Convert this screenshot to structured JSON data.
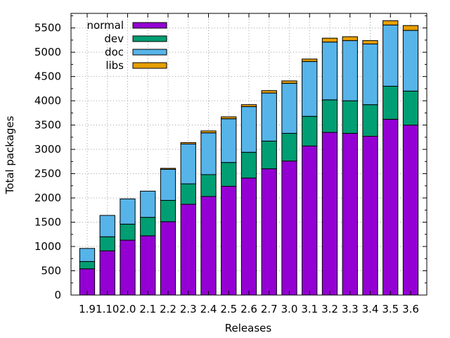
{
  "chart_data": {
    "type": "bar",
    "stacked": true,
    "xlabel": "Releases",
    "ylabel": "Total packages",
    "ylim": [
      0,
      5800
    ],
    "yticks": [
      0,
      500,
      1000,
      1500,
      2000,
      2500,
      3000,
      3500,
      4000,
      4500,
      5000,
      5500
    ],
    "grid": true,
    "legend_position": "top-left",
    "categories": [
      "1.9",
      "1.10",
      "2.0",
      "2.1",
      "2.2",
      "2.3",
      "2.4",
      "2.5",
      "2.6",
      "2.7",
      "3.0",
      "3.1",
      "3.2",
      "3.3",
      "3.4",
      "3.5",
      "3.6"
    ],
    "series": [
      {
        "name": "normal",
        "color": "#9400d3",
        "values": [
          540,
          910,
          1130,
          1220,
          1510,
          1870,
          2030,
          2240,
          2410,
          2600,
          2760,
          3070,
          3350,
          3330,
          3270,
          3620,
          3500
        ]
      },
      {
        "name": "dev",
        "color": "#009e73",
        "values": [
          150,
          290,
          330,
          380,
          440,
          420,
          450,
          490,
          530,
          570,
          570,
          610,
          670,
          670,
          650,
          680,
          700
        ]
      },
      {
        "name": "doc",
        "color": "#56b4e9",
        "values": [
          270,
          440,
          520,
          540,
          640,
          820,
          860,
          900,
          940,
          990,
          1030,
          1130,
          1190,
          1240,
          1250,
          1260,
          1250
        ]
      },
      {
        "name": "libs",
        "color": "#e69f00",
        "values": [
          0,
          0,
          0,
          0,
          20,
          30,
          40,
          40,
          40,
          50,
          50,
          50,
          80,
          80,
          70,
          90,
          100
        ]
      }
    ]
  }
}
